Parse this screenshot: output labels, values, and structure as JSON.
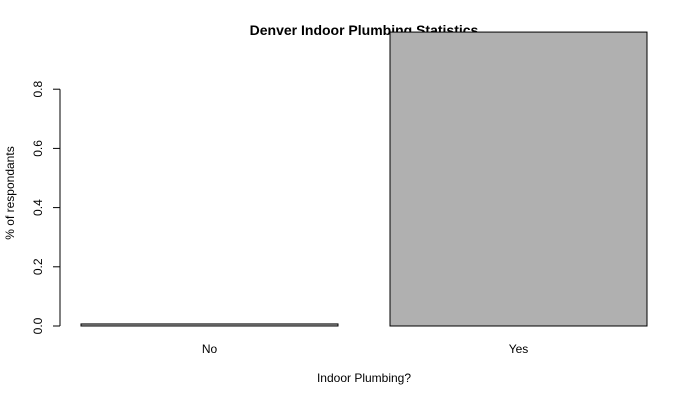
{
  "chart_data": {
    "type": "bar",
    "title": "Denver Indoor Plumbing Statistics",
    "xlabel": "Indoor Plumbing?",
    "ylabel": "% of respondants",
    "categories": [
      "No",
      "Yes"
    ],
    "values": [
      0.007,
      0.993
    ],
    "ylim": [
      0,
      1.0
    ],
    "yticks": [
      0.0,
      0.2,
      0.4,
      0.6,
      0.8
    ],
    "ytick_labels": [
      "0.0",
      "0.2",
      "0.4",
      "0.6",
      "0.8"
    ],
    "bar_color": "#b0b0b0",
    "grid": false,
    "legend": "none"
  }
}
